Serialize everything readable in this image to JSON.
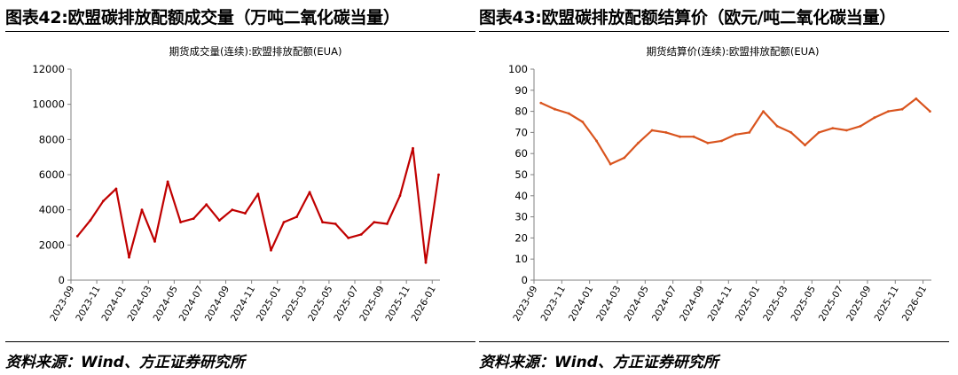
{
  "figures": [
    {
      "title": "图表42:欧盟碳排放配额成交量（万吨二氧化碳当量）",
      "source": "资料来源：Wind、方正证券研究所"
    },
    {
      "title": "图表43:欧盟碳排放配额结算价（欧元/吨二氧化碳当量）",
      "source": "资料来源：Wind、方正证券研究所"
    }
  ],
  "chart_data": [
    {
      "type": "line",
      "title": "期货成交量(连续):欧盟排放配额(EUA)",
      "color": "#c00000",
      "ylim": [
        0,
        12000
      ],
      "yticks": [
        0,
        2000,
        4000,
        6000,
        8000,
        10000,
        12000
      ],
      "xticks": [
        "2023-09",
        "2023-11",
        "2024-01",
        "2024-03",
        "2024-05",
        "2024-07",
        "2024-09",
        "2024-11",
        "2025-01",
        "2025-03",
        "2025-05",
        "2025-07",
        "2025-09",
        "2025-11",
        "2026-01"
      ],
      "x": [
        "2023-09",
        "2023-10",
        "2023-11",
        "2023-12",
        "2024-01",
        "2024-02",
        "2024-03",
        "2024-04",
        "2024-05",
        "2024-06",
        "2024-07",
        "2024-08",
        "2024-09",
        "2024-10",
        "2024-11",
        "2024-12",
        "2025-01",
        "2025-02",
        "2025-03",
        "2025-04",
        "2025-05",
        "2025-06",
        "2025-07",
        "2025-08",
        "2025-09",
        "2025-10",
        "2025-11",
        "2025-12",
        "2026-01"
      ],
      "values": [
        2500,
        3400,
        4500,
        5200,
        1300,
        4000,
        2200,
        5600,
        3300,
        3500,
        4300,
        3400,
        4000,
        3800,
        4900,
        1700,
        3300,
        3600,
        5000,
        3300,
        3200,
        2400,
        2600,
        3300,
        3200,
        4800,
        7500,
        1000,
        6000
      ]
    },
    {
      "type": "line",
      "title": "期货结算价(连续):欧盟排放配额(EUA)",
      "color": "#d9541e",
      "ylim": [
        0,
        100
      ],
      "yticks": [
        0,
        10,
        20,
        30,
        40,
        50,
        60,
        70,
        80,
        90,
        100
      ],
      "xticks": [
        "2023-09",
        "2023-11",
        "2024-01",
        "2024-03",
        "2024-05",
        "2024-07",
        "2024-09",
        "2024-11",
        "2025-01",
        "2025-03",
        "2025-05",
        "2025-07",
        "2025-09",
        "2025-11",
        "2026-01"
      ],
      "x": [
        "2023-09",
        "2023-10",
        "2023-11",
        "2023-12",
        "2024-01",
        "2024-02",
        "2024-03",
        "2024-04",
        "2024-05",
        "2024-06",
        "2024-07",
        "2024-08",
        "2024-09",
        "2024-10",
        "2024-11",
        "2024-12",
        "2025-01",
        "2025-02",
        "2025-03",
        "2025-04",
        "2025-05",
        "2025-06",
        "2025-07",
        "2025-08",
        "2025-09",
        "2025-10",
        "2025-11",
        "2025-12",
        "2026-01"
      ],
      "values": [
        84,
        81,
        79,
        75,
        66,
        55,
        58,
        65,
        71,
        70,
        68,
        68,
        65,
        66,
        69,
        70,
        80,
        73,
        70,
        64,
        70,
        72,
        71,
        73,
        77,
        80,
        81,
        86,
        80
      ]
    }
  ]
}
